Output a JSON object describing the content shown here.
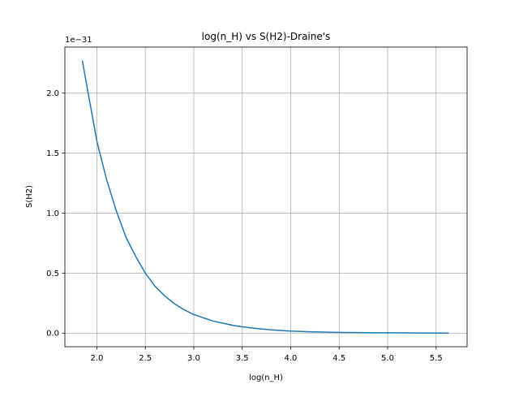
{
  "chart_data": {
    "type": "line",
    "title": "log(n_H) vs S(H2)-Draine's",
    "xlabel": "log(n_H)",
    "ylabel": "S(H2)",
    "offset_text": "1e−31",
    "xlim": [
      1.67,
      5.82
    ],
    "ylim": [
      -0.1135,
      2.3835
    ],
    "x_ticks": [
      2.0,
      2.5,
      3.0,
      3.5,
      4.0,
      4.5,
      5.0,
      5.5
    ],
    "x_tick_labels": [
      "2.0",
      "2.5",
      "3.0",
      "3.5",
      "4.0",
      "4.5",
      "5.0",
      "5.5"
    ],
    "y_ticks": [
      0.0,
      0.5,
      1.0,
      1.5,
      2.0
    ],
    "y_tick_labels": [
      "0.0",
      "0.5",
      "1.0",
      "1.5",
      "2.0"
    ],
    "grid": true,
    "color": "#1f77b4",
    "series": [
      {
        "x": [
          1.85,
          2.0,
          2.1,
          2.2,
          2.3,
          2.4,
          2.5,
          2.6,
          2.7,
          2.8,
          2.9,
          3.0,
          3.2,
          3.4,
          3.5,
          3.6,
          3.8,
          4.0,
          4.2,
          4.5,
          4.8,
          5.0,
          5.3,
          5.63
        ],
        "y": [
          2.27,
          1.6,
          1.28,
          1.02,
          0.8,
          0.64,
          0.5,
          0.39,
          0.31,
          0.245,
          0.195,
          0.155,
          0.1,
          0.065,
          0.052,
          0.042,
          0.027,
          0.017,
          0.011,
          0.006,
          0.003,
          0.002,
          0.001,
          0.0
        ]
      }
    ]
  }
}
